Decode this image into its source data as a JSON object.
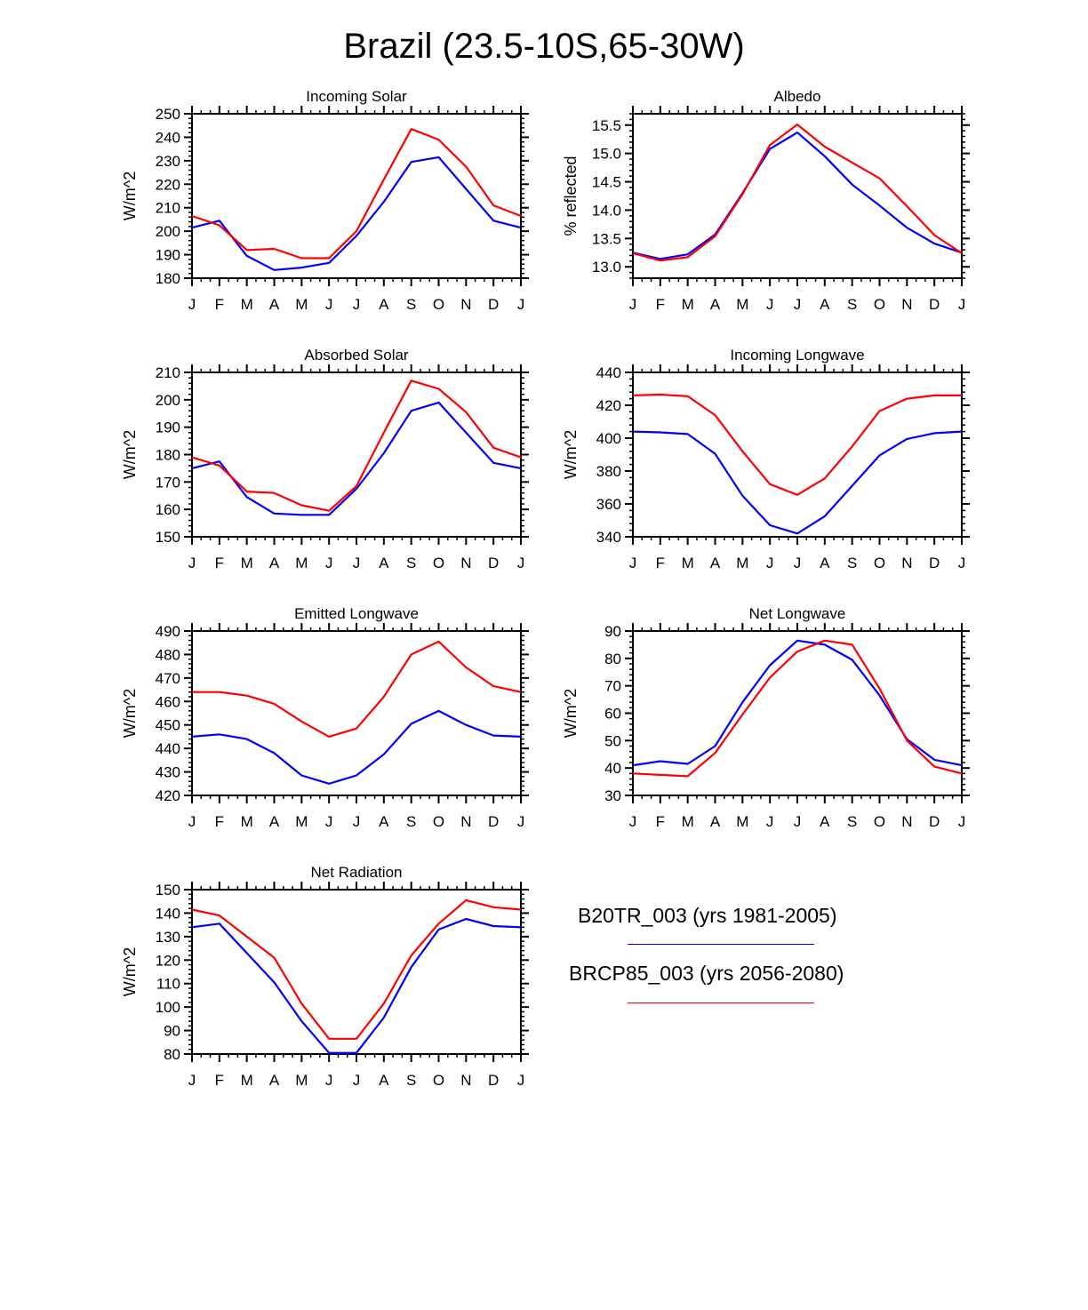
{
  "title": "Brazil (23.5-10S,65-30W)",
  "colors": {
    "series_0": "#0000ff",
    "series_1": "#ff0000",
    "axis": "#000000"
  },
  "legend": [
    {
      "label": "B20TR_003 (yrs 1981-2005)",
      "color": "#0000ff"
    },
    {
      "label": "BRCP85_003 (yrs 2056-2080)",
      "color": "#ff0000"
    }
  ],
  "chart_data": [
    {
      "type": "line",
      "title": "Incoming Solar",
      "ylabel": "W/m^2",
      "xlabel": "",
      "categories": [
        "J",
        "F",
        "M",
        "A",
        "M",
        "J",
        "J",
        "A",
        "S",
        "O",
        "N",
        "D",
        "J"
      ],
      "ylim": [
        180,
        250
      ],
      "yticks": [
        "180",
        "190",
        "200",
        "210",
        "220",
        "230",
        "240",
        "250"
      ],
      "series": [
        {
          "name": "B20TR_003 (yrs 1981-2005)",
          "color": "#0000ff",
          "values": [
            201.5,
            204.5,
            189.5,
            183.5,
            184.5,
            186.5,
            198,
            212.5,
            229.5,
            231.5,
            218,
            204.5,
            201.5
          ]
        },
        {
          "name": "BRCP85_003 (yrs 2056-2080)",
          "color": "#ff0000",
          "values": [
            206.5,
            202.5,
            192,
            192.5,
            188.5,
            188.5,
            200,
            222,
            243.5,
            239,
            227.5,
            211,
            206.5
          ]
        }
      ]
    },
    {
      "type": "line",
      "title": "Albedo",
      "ylabel": "% reflected",
      "xlabel": "",
      "categories": [
        "J",
        "F",
        "M",
        "A",
        "M",
        "J",
        "J",
        "A",
        "S",
        "O",
        "N",
        "D",
        "J"
      ],
      "ylim": [
        12.8,
        15.7
      ],
      "yticks": [
        "13.0",
        "13.5",
        "14.0",
        "14.5",
        "15.0",
        "15.5"
      ],
      "series": [
        {
          "name": "B20TR_003 (yrs 1981-2005)",
          "color": "#0000ff",
          "values": [
            13.25,
            13.14,
            13.22,
            13.57,
            14.3,
            15.08,
            15.37,
            14.95,
            14.45,
            14.08,
            13.69,
            13.41,
            13.25
          ]
        },
        {
          "name": "BRCP85_003 (yrs 2056-2080)",
          "color": "#ff0000",
          "values": [
            13.24,
            13.11,
            13.17,
            13.54,
            14.28,
            15.15,
            15.51,
            15.12,
            14.84,
            14.56,
            14.07,
            13.56,
            13.24
          ]
        }
      ]
    },
    {
      "type": "line",
      "title": "Absorbed Solar",
      "ylabel": "W/m^2",
      "xlabel": "",
      "categories": [
        "J",
        "F",
        "M",
        "A",
        "M",
        "J",
        "J",
        "A",
        "S",
        "O",
        "N",
        "D",
        "J"
      ],
      "ylim": [
        150,
        210
      ],
      "yticks": [
        "150",
        "160",
        "170",
        "180",
        "190",
        "200",
        "210"
      ],
      "series": [
        {
          "name": "B20TR_003 (yrs 1981-2005)",
          "color": "#0000ff",
          "values": [
            175,
            177.5,
            164.5,
            158.5,
            158,
            158,
            167.5,
            180.5,
            196,
            199,
            188,
            177,
            175
          ]
        },
        {
          "name": "BRCP85_003 (yrs 2056-2080)",
          "color": "#ff0000",
          "values": [
            179,
            176,
            166.5,
            166,
            161.5,
            159.5,
            168.5,
            188,
            207,
            204,
            195.5,
            182.5,
            179
          ]
        }
      ]
    },
    {
      "type": "line",
      "title": "Incoming Longwave",
      "ylabel": "W/m^2",
      "xlabel": "",
      "categories": [
        "J",
        "F",
        "M",
        "A",
        "M",
        "J",
        "J",
        "A",
        "S",
        "O",
        "N",
        "D",
        "J"
      ],
      "ylim": [
        340,
        440
      ],
      "yticks": [
        "340",
        "360",
        "380",
        "400",
        "420",
        "440"
      ],
      "series": [
        {
          "name": "B20TR_003 (yrs 1981-2005)",
          "color": "#0000ff",
          "values": [
            404,
            403.5,
            402.5,
            390.5,
            365,
            347,
            342,
            352.5,
            371,
            389.5,
            399.5,
            403,
            404
          ]
        },
        {
          "name": "BRCP85_003 (yrs 2056-2080)",
          "color": "#ff0000",
          "values": [
            426,
            426.5,
            425.5,
            414,
            392,
            372,
            365.5,
            375.5,
            395,
            416.5,
            424,
            426,
            426
          ]
        }
      ]
    },
    {
      "type": "line",
      "title": "Emitted Longwave",
      "ylabel": "W/m^2",
      "xlabel": "",
      "categories": [
        "J",
        "F",
        "M",
        "A",
        "M",
        "J",
        "J",
        "A",
        "S",
        "O",
        "N",
        "D",
        "J"
      ],
      "ylim": [
        420,
        490
      ],
      "yticks": [
        "420",
        "430",
        "440",
        "450",
        "460",
        "470",
        "480",
        "490"
      ],
      "series": [
        {
          "name": "B20TR_003 (yrs 1981-2005)",
          "color": "#0000ff",
          "values": [
            445,
            446,
            444,
            438,
            428.5,
            425,
            428.5,
            437.5,
            450.5,
            456,
            450,
            445.5,
            445
          ]
        },
        {
          "name": "BRCP85_003 (yrs 2056-2080)",
          "color": "#ff0000",
          "values": [
            464,
            464,
            462.5,
            459,
            451.5,
            445,
            448.5,
            462,
            480,
            485.5,
            474.5,
            466.5,
            464
          ]
        }
      ]
    },
    {
      "type": "line",
      "title": "Net Longwave",
      "ylabel": "W/m^2",
      "xlabel": "",
      "categories": [
        "J",
        "F",
        "M",
        "A",
        "M",
        "J",
        "J",
        "A",
        "S",
        "O",
        "N",
        "D",
        "J"
      ],
      "ylim": [
        30,
        90
      ],
      "yticks": [
        "30",
        "40",
        "50",
        "60",
        "70",
        "80",
        "90"
      ],
      "series": [
        {
          "name": "B20TR_003 (yrs 1981-2005)",
          "color": "#0000ff",
          "values": [
            41,
            42.5,
            41.5,
            48,
            64,
            77.5,
            86.5,
            85,
            79.5,
            66.5,
            50.5,
            43,
            41
          ]
        },
        {
          "name": "BRCP85_003 (yrs 2056-2080)",
          "color": "#ff0000",
          "values": [
            38,
            37.5,
            37,
            45.5,
            59.5,
            73,
            82.5,
            86.5,
            85,
            69,
            50,
            40.5,
            38
          ]
        }
      ]
    },
    {
      "type": "line",
      "title": "Net Radiation",
      "ylabel": "W/m^2",
      "xlabel": "",
      "categories": [
        "J",
        "F",
        "M",
        "A",
        "M",
        "J",
        "J",
        "A",
        "S",
        "O",
        "N",
        "D",
        "J"
      ],
      "ylim": [
        80,
        150
      ],
      "yticks": [
        "80",
        "90",
        "100",
        "110",
        "120",
        "130",
        "140",
        "150"
      ],
      "series": [
        {
          "name": "B20TR_003 (yrs 1981-2005)",
          "color": "#0000ff",
          "values": [
            134,
            135.5,
            123,
            110.5,
            94,
            80.5,
            80.5,
            95.5,
            117,
            133,
            137.5,
            134.5,
            134
          ]
        },
        {
          "name": "BRCP85_003 (yrs 2056-2080)",
          "color": "#ff0000",
          "values": [
            141.5,
            139,
            130,
            121,
            101.5,
            86.5,
            86.5,
            101.5,
            122,
            135.5,
            145.5,
            142.5,
            141.5
          ]
        }
      ]
    }
  ]
}
